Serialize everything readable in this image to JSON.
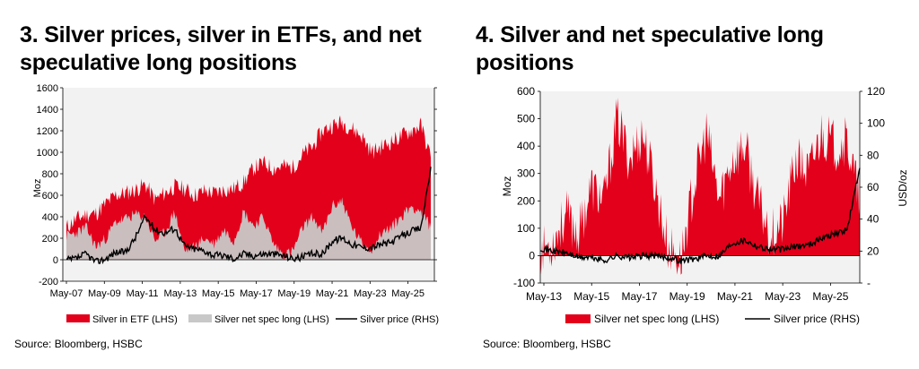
{
  "charts": [
    {
      "title": "3. Silver prices, silver in ETFs, and net speculative long positions",
      "source": "Source: Bloomberg, HSBC",
      "ylabel_left": "Moz",
      "ylabel_right": "",
      "left_ticks": [
        "1600",
        "1400",
        "1200",
        "1000",
        "800",
        "600",
        "400",
        "200",
        "0",
        "-200"
      ],
      "right_ticks": [
        "",
        "",
        "",
        "",
        "",
        "",
        "",
        "",
        "",
        ""
      ],
      "x_ticks": [
        "May-07",
        "May-09",
        "May-11",
        "May-13",
        "May-15",
        "May-17",
        "May-19",
        "May-21",
        "May-23",
        "May-25"
      ],
      "legend": [
        "Silver in ETF (LHS)",
        "Silver net spec long (LHS)",
        "Silver price (RHS)"
      ]
    },
    {
      "title": "4. Silver and net speculative long positions",
      "source": "Source: Bloomberg, HSBC",
      "ylabel_left": "Moz",
      "ylabel_right": "USD/oz",
      "left_ticks": [
        "600",
        "500",
        "400",
        "300",
        "200",
        "100",
        "0",
        "-100"
      ],
      "right_ticks": [
        "120",
        "100",
        "80",
        "60",
        "40",
        "20",
        "-"
      ],
      "x_ticks": [
        "May-13",
        "May-15",
        "May-17",
        "May-19",
        "May-21",
        "May-23",
        "May-25"
      ],
      "legend": [
        "Silver net spec long (LHS)",
        "Silver price (RHS)"
      ]
    }
  ],
  "colors": {
    "etf": "#e3001b",
    "spec_grey": "#c8c8c8",
    "price": "#000000",
    "plot_bg": "#f2f2f2"
  },
  "chart_data": [
    {
      "type": "area",
      "title": "3. Silver prices, silver in ETFs, and net speculative long positions",
      "ylabel": "Moz",
      "ylim": [
        -200,
        1600
      ],
      "y2lim": [
        0,
        120
      ],
      "x": [
        "May-07",
        "Nov-07",
        "May-08",
        "Nov-08",
        "May-09",
        "Nov-09",
        "May-10",
        "Nov-10",
        "May-11",
        "Nov-11",
        "May-12",
        "Nov-12",
        "May-13",
        "Nov-13",
        "May-14",
        "Nov-14",
        "May-15",
        "Nov-15",
        "May-16",
        "Nov-16",
        "May-17",
        "Nov-17",
        "May-18",
        "Nov-18",
        "May-19",
        "Nov-19",
        "May-20",
        "Nov-20",
        "May-21",
        "Nov-21",
        "May-22",
        "Nov-22",
        "May-23",
        "Nov-23",
        "May-24",
        "Nov-24",
        "May-25",
        "Nov-25"
      ],
      "series": [
        {
          "name": "Silver in ETF (LHS)",
          "values": [
            300,
            380,
            420,
            430,
            520,
            600,
            620,
            650,
            700,
            560,
            620,
            680,
            660,
            600,
            640,
            620,
            650,
            660,
            720,
            850,
            900,
            850,
            870,
            860,
            980,
            1050,
            1200,
            1250,
            1280,
            1220,
            1150,
            1000,
            1050,
            1100,
            1150,
            1200,
            1250,
            950
          ]
        },
        {
          "name": "Silver net spec long (LHS)",
          "values": [
            220,
            250,
            300,
            120,
            200,
            350,
            380,
            420,
            400,
            180,
            250,
            450,
            80,
            120,
            200,
            150,
            280,
            180,
            450,
            320,
            400,
            150,
            50,
            80,
            300,
            400,
            250,
            500,
            550,
            300,
            150,
            100,
            250,
            300,
            400,
            500,
            450,
            300
          ]
        },
        {
          "name": "Silver price (RHS)",
          "values": [
            13,
            14,
            17,
            12,
            14,
            18,
            18,
            27,
            40,
            32,
            30,
            33,
            22,
            20,
            19,
            16,
            16,
            14,
            17,
            16,
            17,
            17,
            16,
            14,
            15,
            17,
            17,
            25,
            27,
            23,
            21,
            21,
            23,
            24,
            28,
            31,
            33,
            71
          ]
        }
      ]
    },
    {
      "type": "area",
      "title": "4. Silver and net speculative long positions",
      "ylabel": "Moz",
      "y2label": "USD/oz",
      "ylim": [
        -100,
        600
      ],
      "y2lim": [
        0,
        120
      ],
      "x": [
        "May-13",
        "Nov-13",
        "May-14",
        "Nov-14",
        "May-15",
        "Nov-15",
        "May-16",
        "Nov-16",
        "May-17",
        "Nov-17",
        "May-18",
        "Nov-18",
        "May-19",
        "Nov-19",
        "May-20",
        "Nov-20",
        "May-21",
        "Nov-21",
        "May-22",
        "Nov-22",
        "May-23",
        "Nov-23",
        "May-24",
        "Nov-24",
        "May-25",
        "Nov-25"
      ],
      "series": [
        {
          "name": "Silver net spec long (LHS)",
          "values": [
            10,
            50,
            150,
            80,
            250,
            200,
            500,
            350,
            450,
            250,
            30,
            -20,
            250,
            450,
            200,
            350,
            400,
            200,
            80,
            120,
            350,
            300,
            450,
            400,
            420,
            200
          ]
        },
        {
          "name": "Silver price (RHS)",
          "values": [
            22,
            20,
            19,
            16,
            16,
            14,
            17,
            16,
            17,
            17,
            16,
            14,
            15,
            17,
            17,
            25,
            27,
            23,
            21,
            21,
            23,
            24,
            28,
            31,
            33,
            72
          ]
        }
      ]
    }
  ]
}
